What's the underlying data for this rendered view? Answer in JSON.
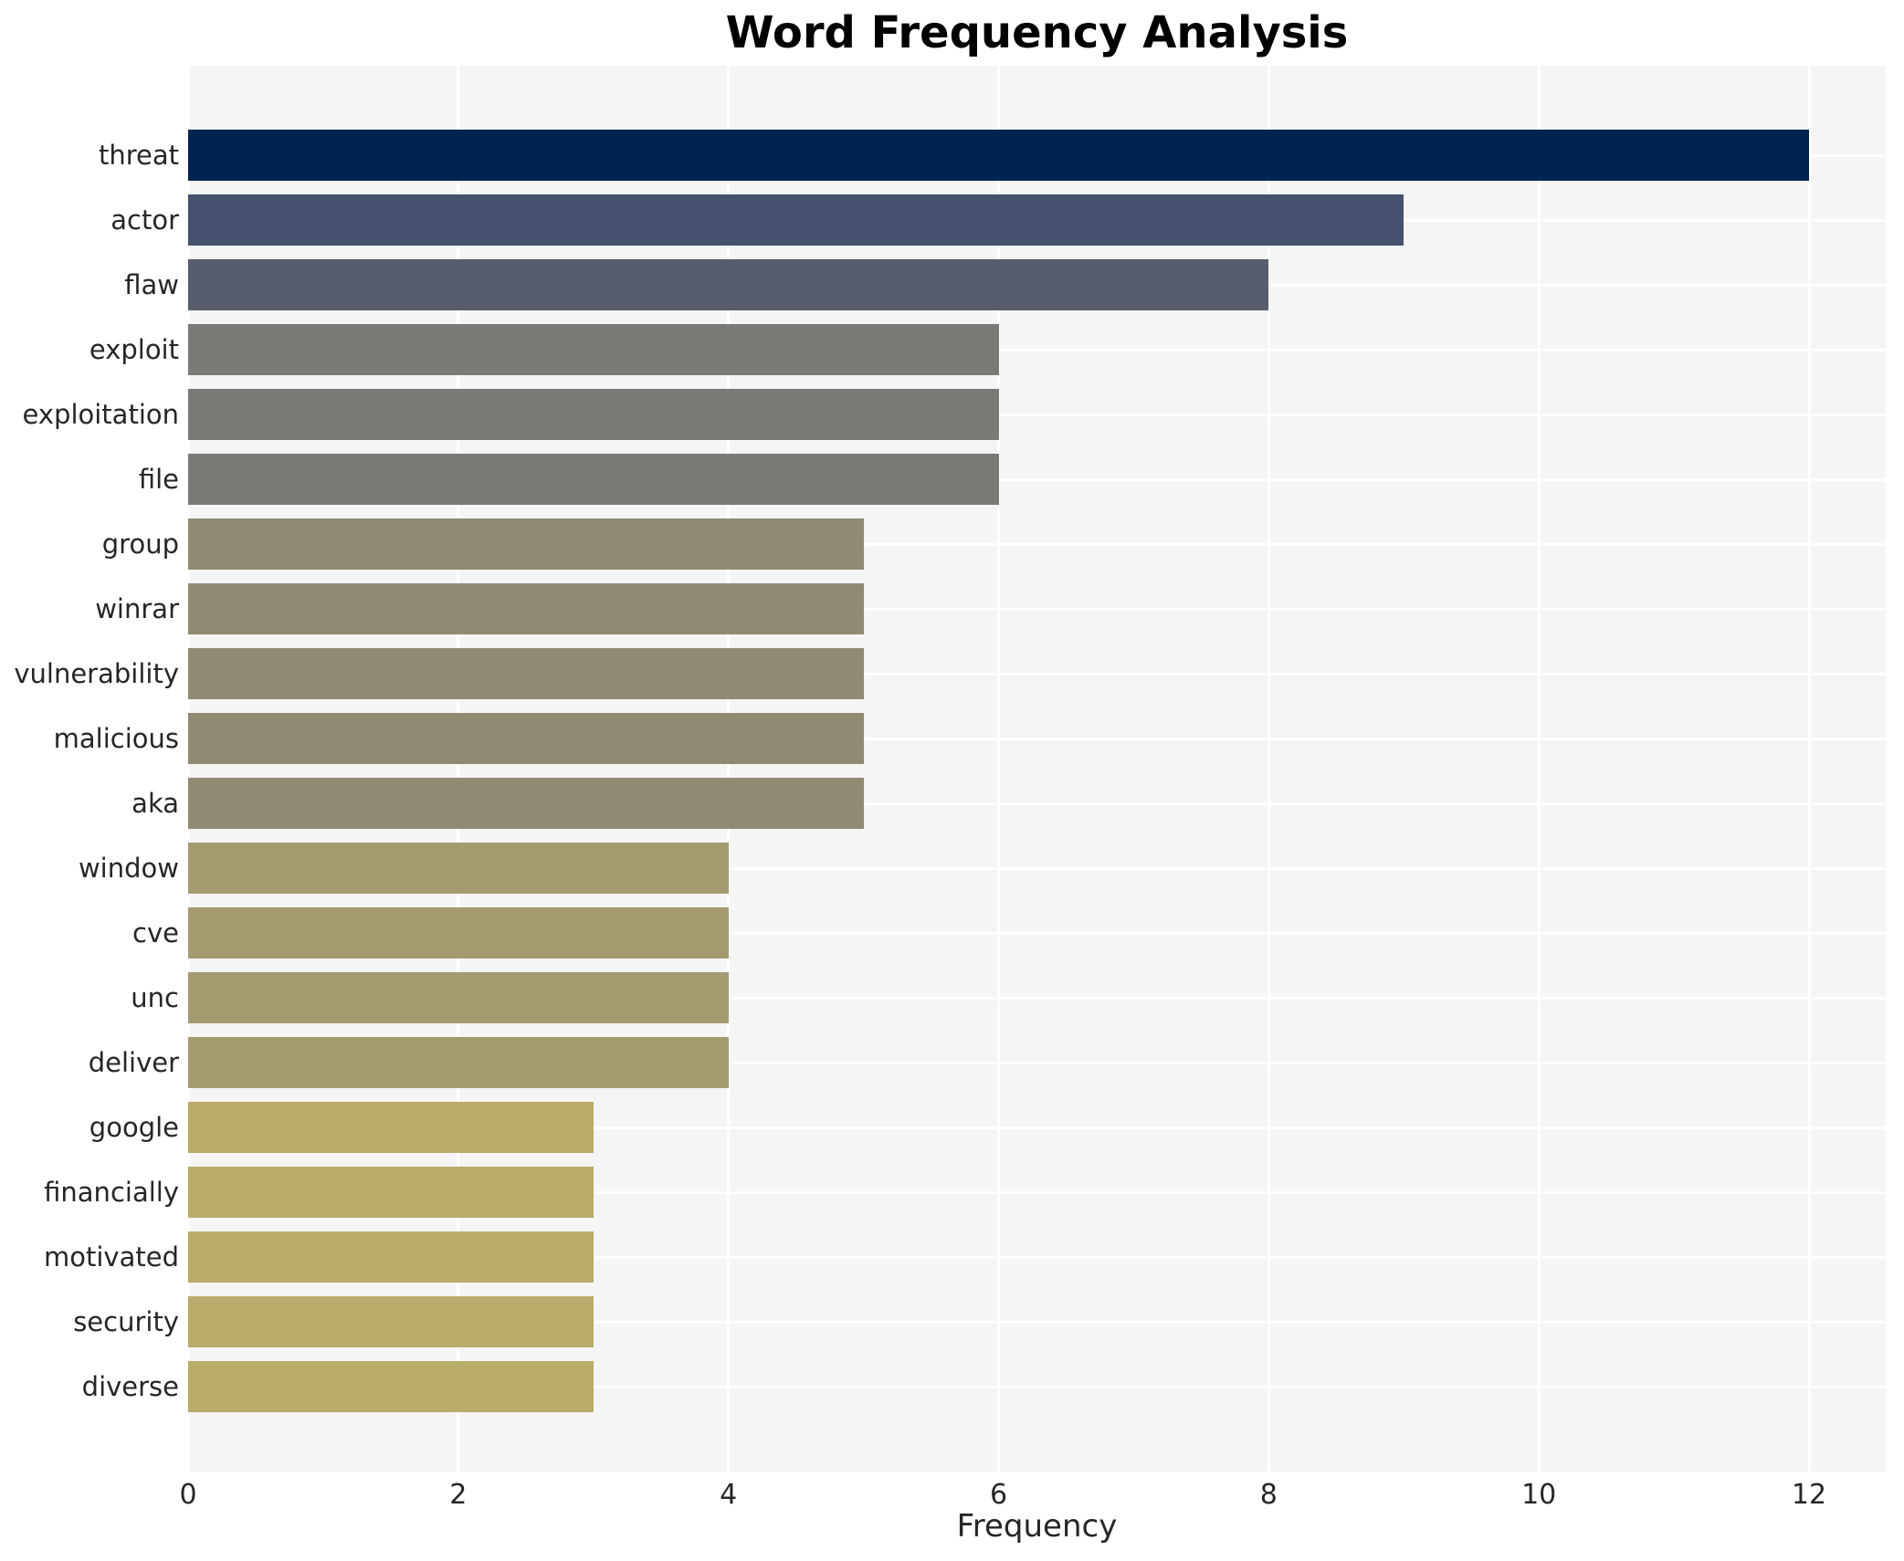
{
  "title": "Word Frequency Analysis",
  "chart_data": {
    "type": "bar",
    "orientation": "horizontal",
    "title": "Word Frequency Analysis",
    "xlabel": "Frequency",
    "ylabel": "",
    "xlim": [
      0,
      12.58
    ],
    "xticks": [
      0,
      2,
      4,
      6,
      8,
      10,
      12
    ],
    "grid": true,
    "legend_position": "none",
    "categories": [
      "threat",
      "actor",
      "flaw",
      "exploit",
      "exploitation",
      "file",
      "group",
      "winrar",
      "vulnerability",
      "malicious",
      "aka",
      "window",
      "cve",
      "unc",
      "deliver",
      "google",
      "financially",
      "motivated",
      "security",
      "diverse"
    ],
    "values": [
      12,
      9,
      8,
      6,
      6,
      6,
      5,
      5,
      5,
      5,
      5,
      4,
      4,
      4,
      4,
      3,
      3,
      3,
      3,
      3
    ],
    "bar_colors": [
      "#012350",
      "#45516f",
      "#575d6d",
      "#7b7a76",
      "#7b7a76",
      "#7b7a76",
      "#918a72",
      "#918a72",
      "#918a72",
      "#918a72",
      "#918a72",
      "#a49a70",
      "#a49a70",
      "#a49a70",
      "#a49a70",
      "#b9ab6a",
      "#b9ab6a",
      "#b9ab6a",
      "#b9ab6a",
      "#b9ab6a"
    ],
    "colors": {
      "plot_background": "#f5f5f6",
      "grid_color": "#ffffff",
      "title_color": "#000000",
      "tick_color": "#262626"
    }
  }
}
